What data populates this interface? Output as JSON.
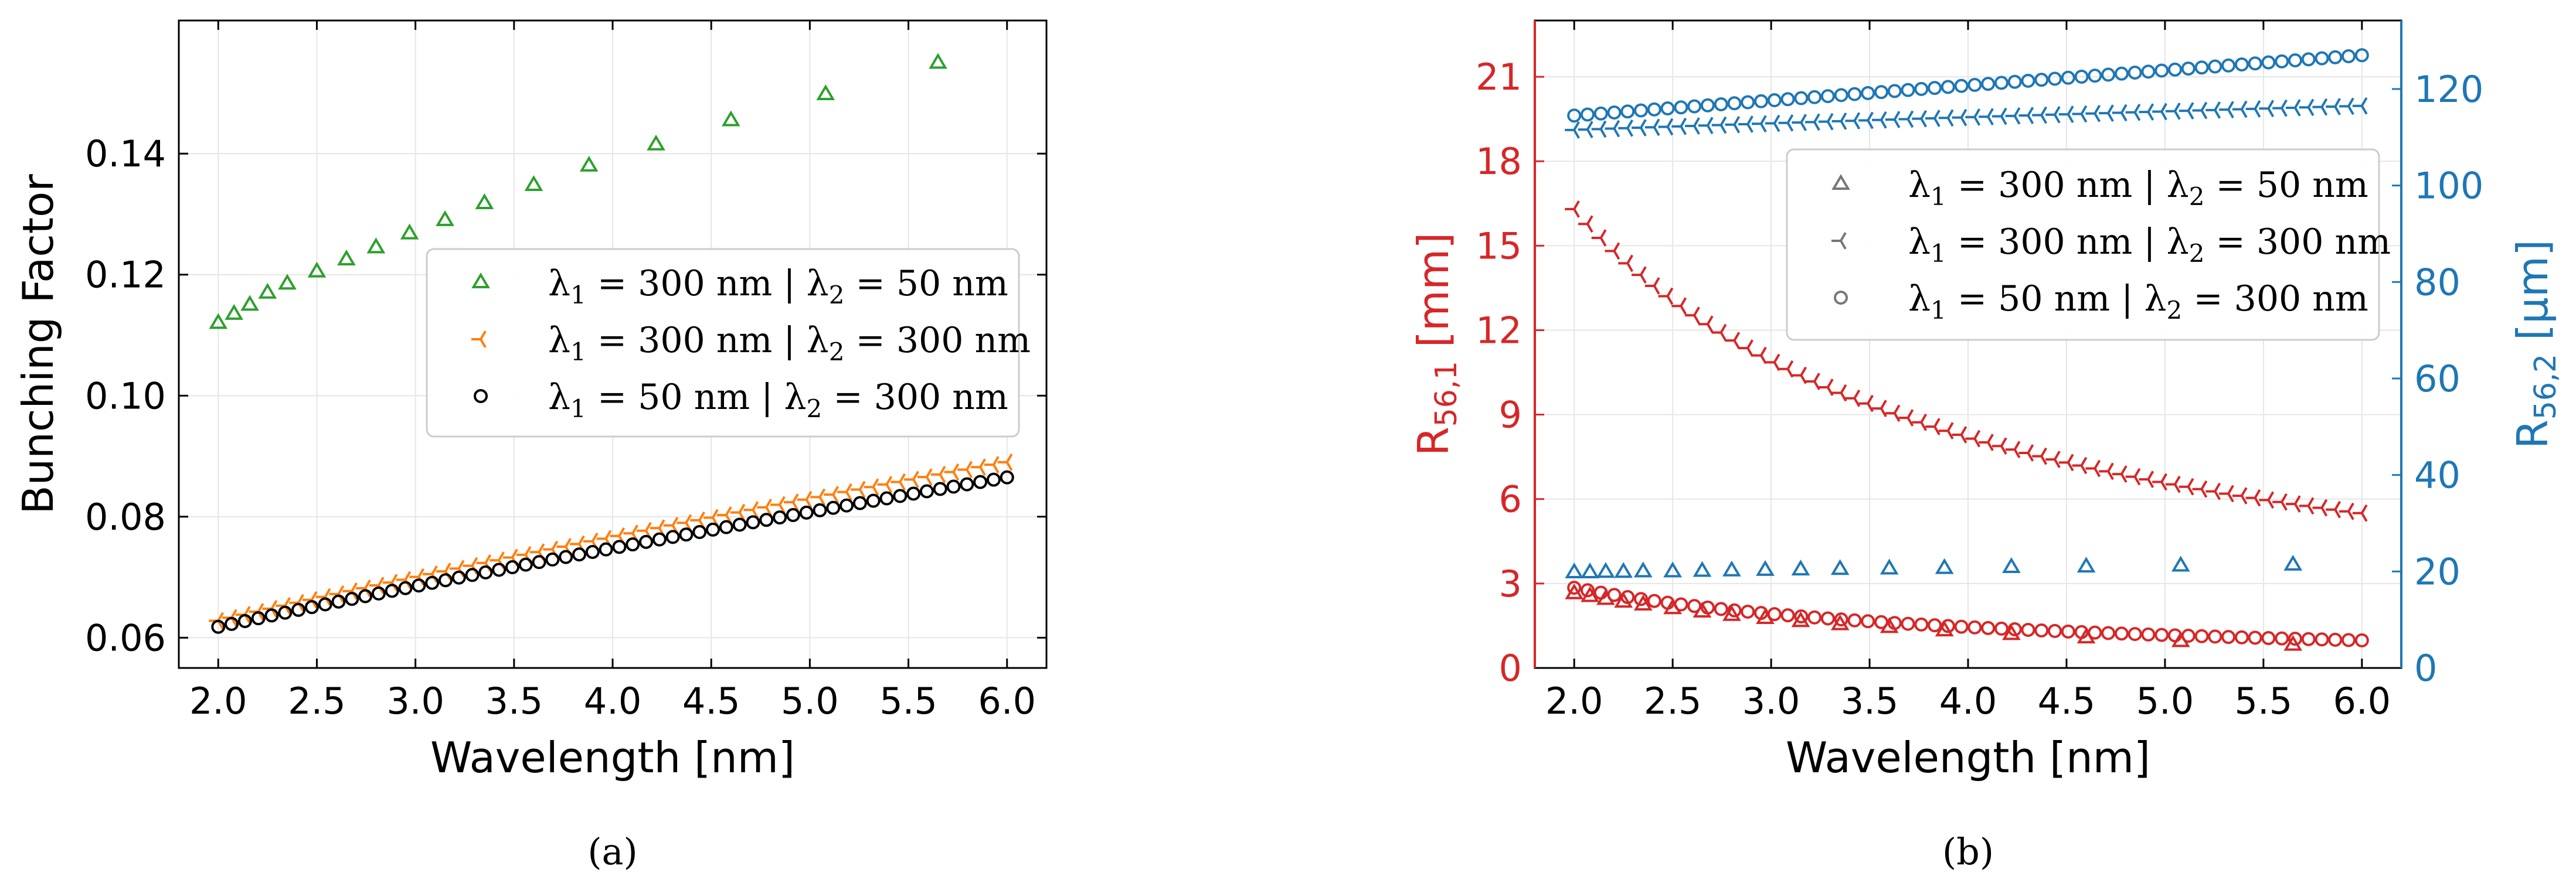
{
  "colors": {
    "green": "#2ca02c",
    "orange": "#ff7f0e",
    "black": "#000000",
    "red": "#d62728",
    "blue": "#1f77b4",
    "gray": "#777777",
    "grid": "#e6e6e6"
  },
  "chart_data": [
    {
      "type": "scatter",
      "panel": "(a)",
      "xlabel": "Wavelength [nm]",
      "ylabel": "Bunching Factor",
      "xlim": [
        1.8,
        6.2
      ],
      "ylim": [
        0.055,
        0.162
      ],
      "xticks": [
        2.0,
        2.5,
        3.0,
        3.5,
        4.0,
        4.5,
        5.0,
        5.5,
        6.0
      ],
      "xtick_labels": [
        "2.0",
        "2.5",
        "3.0",
        "3.5",
        "4.0",
        "4.5",
        "5.0",
        "5.5",
        "6.0"
      ],
      "yticks": [
        0.06,
        0.08,
        0.1,
        0.12,
        0.14
      ],
      "ytick_labels": [
        "0.06",
        "0.08",
        "0.10",
        "0.12",
        "0.14"
      ],
      "grid": true,
      "legend_position": "center-right",
      "series": [
        {
          "name": "λ₁ = 300 nm | λ₂ = 50 nm",
          "legend_parts": [
            "λ",
            "1",
            " = 300 nm | λ",
            "2",
            " = 50 nm"
          ],
          "marker": "triangle",
          "color": "#2ca02c",
          "x": [
            2.0,
            2.08,
            2.16,
            2.25,
            2.35,
            2.5,
            2.65,
            2.8,
            2.97,
            3.15,
            3.35,
            3.6,
            3.88,
            4.22,
            4.6,
            5.08,
            5.65
          ],
          "y": [
            0.112,
            0.1135,
            0.115,
            0.117,
            0.1185,
            0.1205,
            0.1225,
            0.1245,
            0.1268,
            0.129,
            0.1318,
            0.1348,
            0.138,
            0.1415,
            0.1455,
            0.1498,
            0.155
          ]
        },
        {
          "name": "λ₁ = 300 nm | λ₂ = 300 nm",
          "legend_parts": [
            "λ",
            "1",
            " = 300 nm | λ",
            "2",
            " = 300 nm"
          ],
          "marker": "tri_right",
          "color": "#ff7f0e",
          "curve": {
            "x_start": 2.0,
            "x_end": 6.0,
            "y_start": 0.0628,
            "y_end": 0.089,
            "exponent": 0.8,
            "count": 60
          }
        },
        {
          "name": "λ₁ = 50 nm | λ₂ = 300 nm",
          "legend_parts": [
            "λ",
            "1",
            " = 50 nm | λ",
            "2",
            " = 300 nm"
          ],
          "marker": "circle",
          "color": "#000000",
          "curve": {
            "x_start": 2.0,
            "x_end": 6.0,
            "y_start": 0.0618,
            "y_end": 0.0865,
            "exponent": 0.8,
            "count": 60
          }
        }
      ]
    },
    {
      "type": "scatter",
      "panel": "(b)",
      "xlabel": "Wavelength [nm]",
      "ylabel_left": "R56,1 [mm]",
      "ylabel_left_parts": [
        "R",
        "56,1",
        " [mm]"
      ],
      "ylabel_right": "R56,2 [μm]",
      "ylabel_right_parts": [
        "R",
        "56,2",
        " [μm]"
      ],
      "xlim": [
        1.8,
        6.2
      ],
      "ylim_left": [
        0,
        23
      ],
      "ylim_right": [
        0,
        134.2
      ],
      "xticks": [
        2.0,
        2.5,
        3.0,
        3.5,
        4.0,
        4.5,
        5.0,
        5.5,
        6.0
      ],
      "xtick_labels": [
        "2.0",
        "2.5",
        "3.0",
        "3.5",
        "4.0",
        "4.5",
        "5.0",
        "5.5",
        "6.0"
      ],
      "yticks_left": [
        0,
        3,
        6,
        9,
        12,
        15,
        18,
        21
      ],
      "ytick_labels_left": [
        "0",
        "3",
        "6",
        "9",
        "12",
        "15",
        "18",
        "21"
      ],
      "yticks_right": [
        0,
        20,
        40,
        60,
        80,
        100,
        120
      ],
      "ytick_labels_right": [
        "0",
        "20",
        "40",
        "60",
        "80",
        "100",
        "120"
      ],
      "grid": true,
      "legend_position": "upper-right",
      "legend": [
        {
          "parts": [
            "λ",
            "1",
            " = 300 nm | λ",
            "2",
            " = 50 nm"
          ],
          "marker": "triangle"
        },
        {
          "parts": [
            "λ",
            "1",
            " = 300 nm | λ",
            "2",
            " = 300 nm"
          ],
          "marker": "tri_right"
        },
        {
          "parts": [
            "λ",
            "1",
            " = 50 nm | λ",
            "2",
            " = 300 nm"
          ],
          "marker": "circle"
        }
      ],
      "series": [
        {
          "name": "R56,1 λ₁=300 | λ₂=50",
          "axis": "left",
          "marker": "triangle",
          "color": "#d62728",
          "x": [
            2.0,
            2.08,
            2.16,
            2.25,
            2.35,
            2.5,
            2.65,
            2.8,
            2.97,
            3.15,
            3.35,
            3.6,
            3.88,
            4.22,
            4.6,
            5.08,
            5.65
          ],
          "y": [
            2.65,
            2.55,
            2.45,
            2.35,
            2.25,
            2.12,
            2.0,
            1.88,
            1.77,
            1.66,
            1.55,
            1.45,
            1.33,
            1.2,
            1.08,
            0.95,
            0.82
          ]
        },
        {
          "name": "R56,1 λ₁=300 | λ₂=300",
          "axis": "left",
          "marker": "tri_right",
          "color": "#d62728",
          "curve": {
            "x_start": 2.0,
            "x_end": 6.0,
            "y_start": 16.3,
            "y_end": 5.5,
            "exponent": -0.988,
            "count": 60
          }
        },
        {
          "name": "R56,1 λ₁=50 | λ₂=300",
          "axis": "left",
          "marker": "circle",
          "color": "#d62728",
          "curve": {
            "x_start": 2.0,
            "x_end": 6.0,
            "y_start": 2.85,
            "y_end": 0.98,
            "exponent": -0.97,
            "count": 60
          }
        },
        {
          "name": "R56,2 λ₁=300 | λ₂=50",
          "axis": "right",
          "marker": "triangle",
          "color": "#1f77b4",
          "x": [
            2.0,
            2.08,
            2.16,
            2.25,
            2.35,
            2.5,
            2.65,
            2.8,
            2.97,
            3.15,
            3.35,
            3.6,
            3.88,
            4.22,
            4.6,
            5.08,
            5.65
          ],
          "y": [
            19.8,
            19.8,
            19.9,
            19.9,
            20.0,
            20.0,
            20.1,
            20.2,
            20.3,
            20.4,
            20.5,
            20.6,
            20.7,
            20.9,
            21.0,
            21.2,
            21.4
          ]
        },
        {
          "name": "R56,2 λ₁=300 | λ₂=300",
          "axis": "right",
          "marker": "tri_right",
          "color": "#1f77b4",
          "curve": {
            "x_start": 2.0,
            "x_end": 6.0,
            "y_start": 111.5,
            "y_end": 116.5,
            "exponent": 0.8,
            "count": 60
          }
        },
        {
          "name": "R56,2 λ₁=50 | λ₂=300",
          "axis": "right",
          "marker": "circle",
          "color": "#1f77b4",
          "curve": {
            "x_start": 2.0,
            "x_end": 6.0,
            "y_start": 114.5,
            "y_end": 127.0,
            "exponent": 1.0,
            "count": 60
          }
        }
      ]
    }
  ]
}
